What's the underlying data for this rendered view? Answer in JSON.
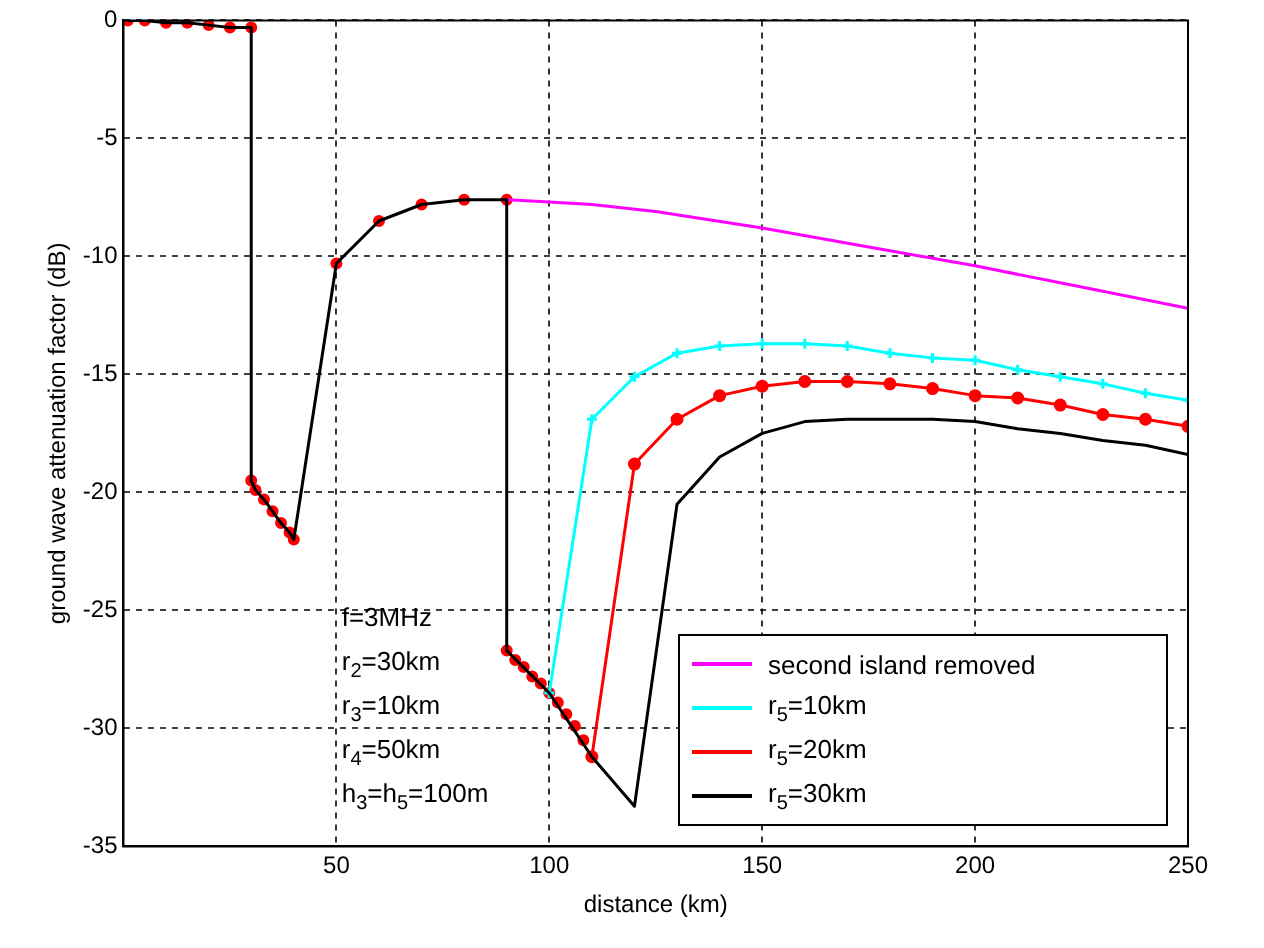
{
  "chart_data": {
    "type": "line",
    "xlabel": "distance (km)",
    "ylabel": "ground wave attenuation factor (dB)",
    "xlim": [
      0,
      250
    ],
    "xticks": [
      50,
      100,
      150,
      200,
      250
    ],
    "ylim": [
      -35,
      0
    ],
    "yticks": [
      -35,
      -30,
      -25,
      -20,
      -15,
      -10,
      -5,
      0
    ],
    "grid": true,
    "legend": "bottom right",
    "line_style": "solid",
    "annotations": [
      "f=3MHz",
      "r$_{2}$=30km",
      "r$_{3}$=10km",
      "r$_{4}$=50km",
      "h$_{3}$=h$_{5}$=100m"
    ],
    "series": [
      {
        "name": "second island removed",
        "color": "#ff00ff",
        "marker": "none",
        "x": [
          90,
          100,
          110,
          125,
          150,
          175,
          200,
          225,
          250
        ],
        "values": [
          -7.6,
          -7.7,
          -7.8,
          -8.1,
          -8.8,
          -9.6,
          -10.4,
          -11.3,
          -12.2
        ]
      },
      {
        "name": "r$_{5}$=10km",
        "color": "#00ffff",
        "marker": "cross",
        "x": [
          100,
          110,
          120,
          130,
          140,
          150,
          160,
          170,
          180,
          190,
          200,
          210,
          220,
          230,
          240,
          250
        ],
        "values": [
          -28.5,
          -16.9,
          -15.1,
          -14.1,
          -13.8,
          -13.7,
          -13.7,
          -13.8,
          -14.1,
          -14.3,
          -14.4,
          -14.8,
          -15.1,
          -15.4,
          -15.8,
          -16.1
        ]
      },
      {
        "name": "r$_{5}$=20km",
        "color": "#ff0000",
        "marker": "circle",
        "x": [
          110,
          120,
          130,
          140,
          150,
          160,
          170,
          180,
          190,
          200,
          210,
          220,
          230,
          240,
          250
        ],
        "values": [
          -31.2,
          -18.8,
          -16.9,
          -15.9,
          -15.5,
          -15.3,
          -15.3,
          -15.4,
          -15.6,
          -15.9,
          -16,
          -16.3,
          -16.7,
          -16.9,
          -17.2
        ]
      },
      {
        "name": "r$_{5}$=30km",
        "color": "#000000",
        "marker": "none",
        "x": [
          1,
          5,
          10,
          15,
          20,
          25,
          30,
          30,
          31,
          33,
          35,
          37,
          39,
          40,
          50,
          60,
          70,
          80,
          90,
          90,
          100,
          110,
          120,
          130,
          140,
          150,
          160,
          170,
          180,
          190,
          200,
          210,
          220,
          230,
          240,
          250
        ],
        "values": [
          0,
          0,
          -0.1,
          -0.1,
          -0.2,
          -0.3,
          -0.3,
          -19.5,
          -19.9,
          -20.3,
          -20.8,
          -21.3,
          -21.7,
          -22,
          -10.3,
          -8.5,
          -7.8,
          -7.6,
          -7.6,
          -26.7,
          -28.5,
          -31.2,
          -33.3,
          -20.5,
          -18.5,
          -17.5,
          -17,
          -16.9,
          -16.9,
          -16.9,
          -17,
          -17.3,
          -17.5,
          -17.8,
          -18,
          -18.4
        ]
      },
      {
        "type": "scatter",
        "color": "#ff0000",
        "marker": "circle",
        "x": [
          1,
          5,
          10,
          15,
          20,
          25,
          30,
          30,
          31,
          33,
          35,
          37,
          39,
          40,
          50,
          60,
          70,
          80,
          90,
          90,
          92,
          94,
          96,
          98,
          100,
          102,
          104,
          106,
          108
        ],
        "values": [
          0,
          0,
          -0.1,
          -0.1,
          -0.2,
          -0.3,
          -0.3,
          -19.5,
          -19.9,
          -20.3,
          -20.8,
          -21.3,
          -21.7,
          -22,
          -10.3,
          -8.5,
          -7.8,
          -7.6,
          -7.6,
          -26.7,
          -27.1,
          -27.4,
          -27.8,
          -28.1,
          -28.5,
          -28.9,
          -29.4,
          -29.9,
          -30.5
        ]
      }
    ]
  }
}
